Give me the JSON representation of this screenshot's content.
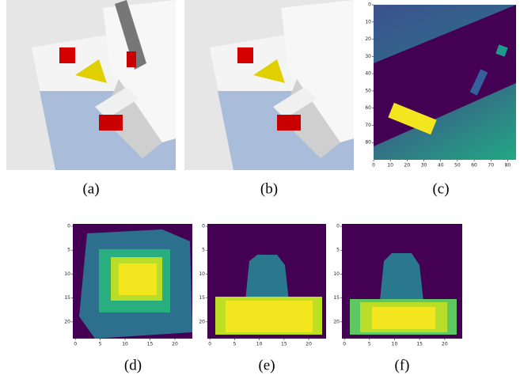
{
  "figures": [
    {
      "caption": "(a)"
    },
    {
      "caption": "(b)"
    },
    {
      "caption": "(c)",
      "xlim": [
        0,
        85
      ],
      "ylim": [
        0,
        90
      ],
      "xticks": [
        0,
        10,
        20,
        30,
        40,
        50,
        60,
        70,
        80
      ],
      "yticks": [
        0,
        10,
        20,
        30,
        40,
        50,
        60,
        70,
        80
      ]
    },
    {
      "caption": "(d)",
      "xlim": [
        -0.5,
        23.5
      ],
      "ylim": [
        -0.5,
        23.5
      ],
      "xticks": [
        0,
        5,
        10,
        15,
        20
      ],
      "yticks": [
        0,
        5,
        10,
        15,
        20
      ]
    },
    {
      "caption": "(e)",
      "xlim": [
        -0.5,
        23.5
      ],
      "ylim": [
        -0.5,
        23.5
      ],
      "xticks": [
        0,
        5,
        10,
        15,
        20
      ],
      "yticks": [
        0,
        5,
        10,
        15,
        20
      ]
    },
    {
      "caption": "(f)",
      "xlim": [
        -0.5,
        23.5
      ],
      "ylim": [
        -0.5,
        23.5
      ],
      "xticks": [
        0,
        5,
        10,
        15,
        20
      ],
      "yticks": [
        0,
        5,
        10,
        15,
        20
      ]
    }
  ]
}
